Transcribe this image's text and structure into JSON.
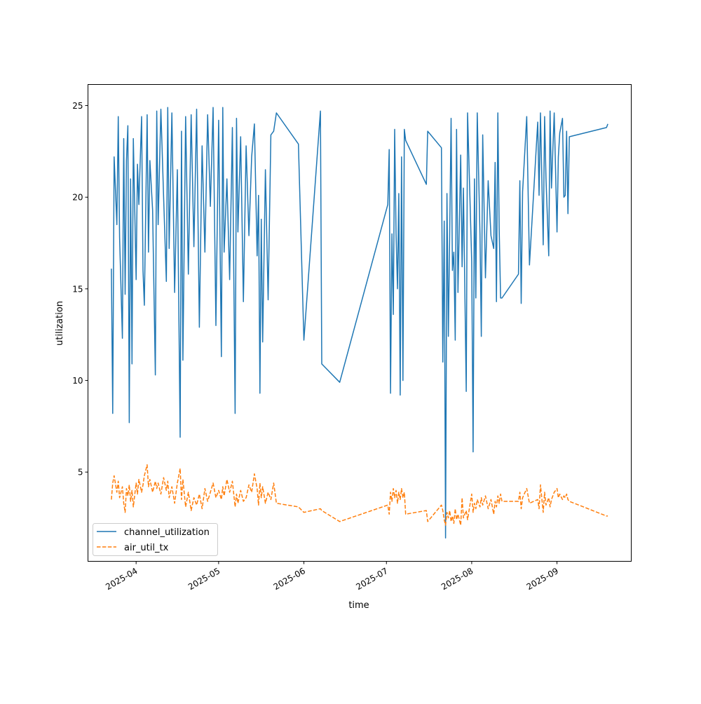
{
  "chart_data": {
    "type": "line",
    "title": "",
    "xlabel": "time",
    "ylabel": "utilization",
    "xlim": [
      "2025-03-14T12:00",
      "2025-09-28T00:00"
    ],
    "ylim": [
      0.13,
      26.15
    ],
    "x_ticks": [
      "2025-04",
      "2025-05",
      "2025-06",
      "2025-07",
      "2025-08",
      "2025-09"
    ],
    "y_ticks": [
      5,
      10,
      15,
      20,
      25
    ],
    "grid": false,
    "legend_position": "lower-left",
    "series": [
      {
        "name": "channel_utilization",
        "color": "#1f77b4",
        "style": "solid"
      },
      {
        "name": "air_util_tx",
        "color": "#ff7f0e",
        "style": "dashed"
      }
    ],
    "columns": [
      "time",
      "channel_utilization",
      "air_util_tx"
    ],
    "rows": [
      [
        "2025-03-23T00:00",
        16.1,
        3.5
      ],
      [
        "2025-03-23T12:00",
        8.2,
        4.4
      ],
      [
        "2025-03-24T00:00",
        22.2,
        4.8
      ],
      [
        "2025-03-25T00:00",
        18.5,
        3.9
      ],
      [
        "2025-03-25T12:00",
        24.4,
        4.5
      ],
      [
        "2025-03-26T00:00",
        17.8,
        3.6
      ],
      [
        "2025-03-27T00:00",
        12.3,
        4.2
      ],
      [
        "2025-03-27T12:00",
        23.2,
        3.3
      ],
      [
        "2025-03-28T00:00",
        14.7,
        2.8
      ],
      [
        "2025-03-28T12:00",
        22.0,
        4.1
      ],
      [
        "2025-03-29T00:00",
        23.9,
        3.7
      ],
      [
        "2025-03-29T12:00",
        7.7,
        4.3
      ],
      [
        "2025-03-30T00:00",
        21.0,
        3.4
      ],
      [
        "2025-03-30T12:00",
        10.9,
        4.0
      ],
      [
        "2025-03-31T00:00",
        23.2,
        3.1
      ],
      [
        "2025-04-01T00:00",
        15.5,
        4.4
      ],
      [
        "2025-04-01T12:00",
        21.8,
        3.8
      ],
      [
        "2025-04-02T00:00",
        19.6,
        4.6
      ],
      [
        "2025-04-03T00:00",
        24.4,
        3.9
      ],
      [
        "2025-04-03T12:00",
        16.0,
        4.3
      ],
      [
        "2025-04-04T00:00",
        14.1,
        4.8
      ],
      [
        "2025-04-05T00:00",
        24.5,
        5.4
      ],
      [
        "2025-04-05T12:00",
        17.0,
        4.2
      ],
      [
        "2025-04-06T00:00",
        22.0,
        4.6
      ],
      [
        "2025-04-07T00:00",
        19.3,
        3.9
      ],
      [
        "2025-04-08T00:00",
        10.3,
        4.5
      ],
      [
        "2025-04-08T12:00",
        24.7,
        4.1
      ],
      [
        "2025-04-09T00:00",
        18.5,
        4.4
      ],
      [
        "2025-04-10T00:00",
        24.8,
        3.8
      ],
      [
        "2025-04-11T00:00",
        20.0,
        4.7
      ],
      [
        "2025-04-12T00:00",
        15.4,
        4.0
      ],
      [
        "2025-04-12T12:00",
        24.9,
        4.5
      ],
      [
        "2025-04-13T00:00",
        17.2,
        3.6
      ],
      [
        "2025-04-14T00:00",
        24.6,
        4.2
      ],
      [
        "2025-04-15T00:00",
        14.8,
        3.3
      ],
      [
        "2025-04-16T00:00",
        21.5,
        4.4
      ],
      [
        "2025-04-17T00:00",
        6.9,
        5.2
      ],
      [
        "2025-04-17T12:00",
        23.6,
        3.5
      ],
      [
        "2025-04-18T00:00",
        11.1,
        4.6
      ],
      [
        "2025-04-19T00:00",
        24.4,
        3.1
      ],
      [
        "2025-04-20T00:00",
        15.8,
        3.9
      ],
      [
        "2025-04-21T00:00",
        24.5,
        2.9
      ],
      [
        "2025-04-22T00:00",
        17.3,
        3.6
      ],
      [
        "2025-04-23T00:00",
        24.8,
        3.2
      ],
      [
        "2025-04-24T00:00",
        12.9,
        3.8
      ],
      [
        "2025-04-25T00:00",
        22.8,
        3.0
      ],
      [
        "2025-04-26T00:00",
        17.0,
        4.1
      ],
      [
        "2025-04-27T00:00",
        24.5,
        3.4
      ],
      [
        "2025-04-28T00:00",
        19.5,
        3.9
      ],
      [
        "2025-04-29T00:00",
        24.9,
        4.4
      ],
      [
        "2025-04-30T00:00",
        13.0,
        3.6
      ],
      [
        "2025-05-01T00:00",
        24.2,
        4.0
      ],
      [
        "2025-05-02T00:00",
        11.3,
        3.5
      ],
      [
        "2025-05-02T12:00",
        24.9,
        4.2
      ],
      [
        "2025-05-03T00:00",
        17.0,
        3.7
      ],
      [
        "2025-05-04T00:00",
        21.0,
        4.6
      ],
      [
        "2025-05-05T00:00",
        15.5,
        3.9
      ],
      [
        "2025-05-06T00:00",
        23.8,
        4.5
      ],
      [
        "2025-05-07T00:00",
        8.2,
        3.1
      ],
      [
        "2025-05-07T12:00",
        24.3,
        3.8
      ],
      [
        "2025-05-08T00:00",
        18.1,
        3.3
      ],
      [
        "2025-05-09T00:00",
        23.3,
        4.0
      ],
      [
        "2025-05-10T00:00",
        14.3,
        3.4
      ],
      [
        "2025-05-11T00:00",
        22.8,
        3.6
      ],
      [
        "2025-05-12T00:00",
        17.9,
        4.3
      ],
      [
        "2025-05-13T00:00",
        22.2,
        3.9
      ],
      [
        "2025-05-14T00:00",
        24.0,
        4.9
      ],
      [
        "2025-05-15T00:00",
        16.8,
        4.1
      ],
      [
        "2025-05-15T12:00",
        20.1,
        3.2
      ],
      [
        "2025-05-16T00:00",
        9.3,
        4.4
      ],
      [
        "2025-05-16T12:00",
        18.8,
        3.6
      ],
      [
        "2025-05-17T00:00",
        12.1,
        4.2
      ],
      [
        "2025-05-18T00:00",
        21.5,
        3.3
      ],
      [
        "2025-05-19T00:00",
        14.4,
        3.9
      ],
      [
        "2025-05-20T00:00",
        23.4,
        3.5
      ],
      [
        "2025-05-21T00:00",
        23.6,
        4.4
      ],
      [
        "2025-05-22T00:00",
        24.6,
        3.3
      ],
      [
        "2025-05-30T00:00",
        22.9,
        3.1
      ],
      [
        "2025-06-01T00:00",
        12.2,
        2.8
      ],
      [
        "2025-06-07T00:00",
        24.7,
        3.0
      ],
      [
        "2025-06-07T12:00",
        10.9,
        2.9
      ],
      [
        "2025-06-14T00:00",
        9.9,
        2.3
      ],
      [
        "2025-07-01T12:00",
        19.6,
        3.2
      ],
      [
        "2025-07-02T00:00",
        22.6,
        2.7
      ],
      [
        "2025-07-02T12:00",
        9.3,
        3.9
      ],
      [
        "2025-07-03T00:00",
        18.0,
        3.4
      ],
      [
        "2025-07-03T12:00",
        13.6,
        4.1
      ],
      [
        "2025-07-04T00:00",
        23.7,
        3.6
      ],
      [
        "2025-07-04T12:00",
        18.0,
        4.0
      ],
      [
        "2025-07-05T00:00",
        15.0,
        3.3
      ],
      [
        "2025-07-05T12:00",
        20.2,
        3.9
      ],
      [
        "2025-07-06T00:00",
        9.2,
        3.5
      ],
      [
        "2025-07-06T12:00",
        22.2,
        4.1
      ],
      [
        "2025-07-07T00:00",
        10.0,
        3.6
      ],
      [
        "2025-07-07T12:00",
        23.7,
        3.9
      ],
      [
        "2025-07-08T00:00",
        23.1,
        2.7
      ],
      [
        "2025-07-15T12:00",
        20.7,
        2.9
      ],
      [
        "2025-07-16T00:00",
        23.6,
        2.3
      ],
      [
        "2025-07-21T00:00",
        22.7,
        3.2
      ],
      [
        "2025-07-21T12:00",
        11.0,
        2.9
      ],
      [
        "2025-07-22T00:00",
        18.7,
        2.4
      ],
      [
        "2025-07-22T12:00",
        1.4,
        2.1
      ],
      [
        "2025-07-23T00:00",
        20.2,
        2.8
      ],
      [
        "2025-07-23T12:00",
        12.4,
        2.5
      ],
      [
        "2025-07-24T00:00",
        18.0,
        2.9
      ],
      [
        "2025-07-24T12:00",
        24.3,
        2.3
      ],
      [
        "2025-07-25T00:00",
        16.0,
        2.6
      ],
      [
        "2025-07-25T12:00",
        17.0,
        2.2
      ],
      [
        "2025-07-26T00:00",
        12.2,
        3.0
      ],
      [
        "2025-07-26T12:00",
        23.7,
        2.4
      ],
      [
        "2025-07-27T00:00",
        14.8,
        2.7
      ],
      [
        "2025-07-28T00:00",
        22.3,
        2.1
      ],
      [
        "2025-07-28T12:00",
        16.2,
        3.6
      ],
      [
        "2025-07-29T00:00",
        20.5,
        2.5
      ],
      [
        "2025-07-30T00:00",
        9.4,
        2.9
      ],
      [
        "2025-07-30T12:00",
        24.6,
        2.4
      ],
      [
        "2025-08-01T00:00",
        16.5,
        3.8
      ],
      [
        "2025-08-01T12:00",
        6.1,
        2.8
      ],
      [
        "2025-08-02T00:00",
        21.0,
        3.3
      ],
      [
        "2025-08-02T12:00",
        14.5,
        3.0
      ],
      [
        "2025-08-03T00:00",
        24.6,
        3.5
      ],
      [
        "2025-08-04T00:00",
        18.0,
        3.1
      ],
      [
        "2025-08-04T12:00",
        12.4,
        3.6
      ],
      [
        "2025-08-05T00:00",
        23.4,
        3.2
      ],
      [
        "2025-08-06T00:00",
        15.6,
        3.7
      ],
      [
        "2025-08-07T00:00",
        20.9,
        3.0
      ],
      [
        "2025-08-08T00:00",
        17.9,
        3.5
      ],
      [
        "2025-08-09T00:00",
        17.2,
        2.7
      ],
      [
        "2025-08-09T12:00",
        21.9,
        3.4
      ],
      [
        "2025-08-10T00:00",
        14.3,
        3.1
      ],
      [
        "2025-08-10T12:00",
        24.6,
        3.7
      ],
      [
        "2025-08-11T00:00",
        18.3,
        3.3
      ],
      [
        "2025-08-11T12:00",
        14.5,
        3.8
      ],
      [
        "2025-08-12T00:00",
        14.5,
        3.4
      ],
      [
        "2025-08-18T00:00",
        15.8,
        3.4
      ],
      [
        "2025-08-18T12:00",
        20.9,
        3.9
      ],
      [
        "2025-08-19T00:00",
        14.2,
        3.0
      ],
      [
        "2025-08-19T12:00",
        20.3,
        3.6
      ],
      [
        "2025-08-21T00:00",
        24.4,
        4.1
      ],
      [
        "2025-08-22T00:00",
        16.3,
        3.3
      ],
      [
        "2025-08-25T00:00",
        24.1,
        3.5
      ],
      [
        "2025-08-25T12:00",
        20.1,
        3.0
      ],
      [
        "2025-08-26T00:00",
        24.6,
        4.3
      ],
      [
        "2025-08-27T00:00",
        17.4,
        2.8
      ],
      [
        "2025-08-27T12:00",
        24.4,
        3.9
      ],
      [
        "2025-08-28T00:00",
        21.0,
        3.2
      ],
      [
        "2025-08-29T00:00",
        16.8,
        3.6
      ],
      [
        "2025-08-29T12:00",
        24.7,
        3.1
      ],
      [
        "2025-08-30T00:00",
        20.5,
        3.5
      ],
      [
        "2025-08-31T00:00",
        24.6,
        3.9
      ],
      [
        "2025-09-01T00:00",
        18.1,
        4.1
      ],
      [
        "2025-09-01T12:00",
        22.2,
        3.6
      ],
      [
        "2025-09-02T00:00",
        23.5,
        3.8
      ],
      [
        "2025-09-03T00:00",
        24.3,
        3.5
      ],
      [
        "2025-09-03T12:00",
        20.0,
        3.7
      ],
      [
        "2025-09-04T00:00",
        20.1,
        3.6
      ],
      [
        "2025-09-04T12:00",
        23.6,
        3.8
      ],
      [
        "2025-09-05T00:00",
        19.1,
        3.5
      ],
      [
        "2025-09-05T12:00",
        23.3,
        3.4
      ],
      [
        "2025-09-19T00:00",
        23.8,
        2.6
      ],
      [
        "2025-09-19T12:00",
        24.0,
        2.6
      ]
    ]
  }
}
